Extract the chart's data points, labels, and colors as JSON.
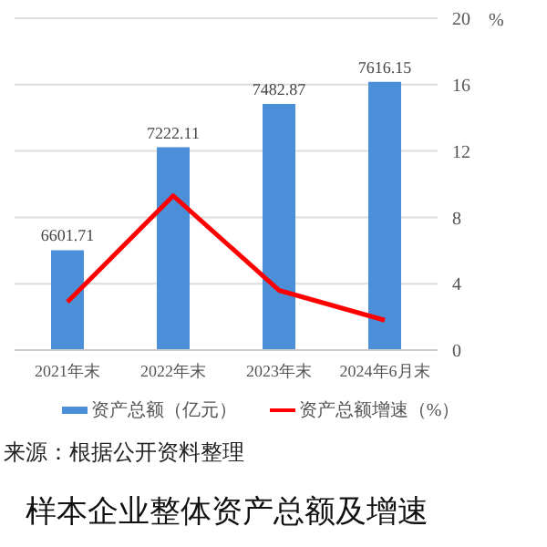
{
  "chart_data": {
    "type": "bar",
    "title": "样本企业整体资产总额及增速",
    "y2label": "%",
    "categories": [
      "2021年末",
      "2022年末",
      "2023年末",
      "2024年6月末"
    ],
    "series": [
      {
        "name": "资产总额（亿元）",
        "color": "#4a8fd8",
        "values": [
          6601.71,
          7222.11,
          7482.87,
          7616.15
        ],
        "value_labels": [
          "6601.71",
          "7222.11",
          "7482.87",
          "7616.15"
        ]
      },
      {
        "name": "资产总额增速（%）",
        "type": "line",
        "axis": "y2",
        "color": "#ff0000",
        "values": [
          2.9,
          9.3,
          3.6,
          1.8
        ]
      }
    ],
    "ylim": [
      6000,
      8000
    ],
    "y2lim": [
      0,
      20
    ],
    "y2ticks": [
      0,
      4,
      8,
      12,
      16,
      20
    ],
    "grid": "y",
    "legend": "bottom",
    "marker": "none",
    "line_style": "solid",
    "annotations": [
      "来源：根据公开资料整理"
    ]
  }
}
